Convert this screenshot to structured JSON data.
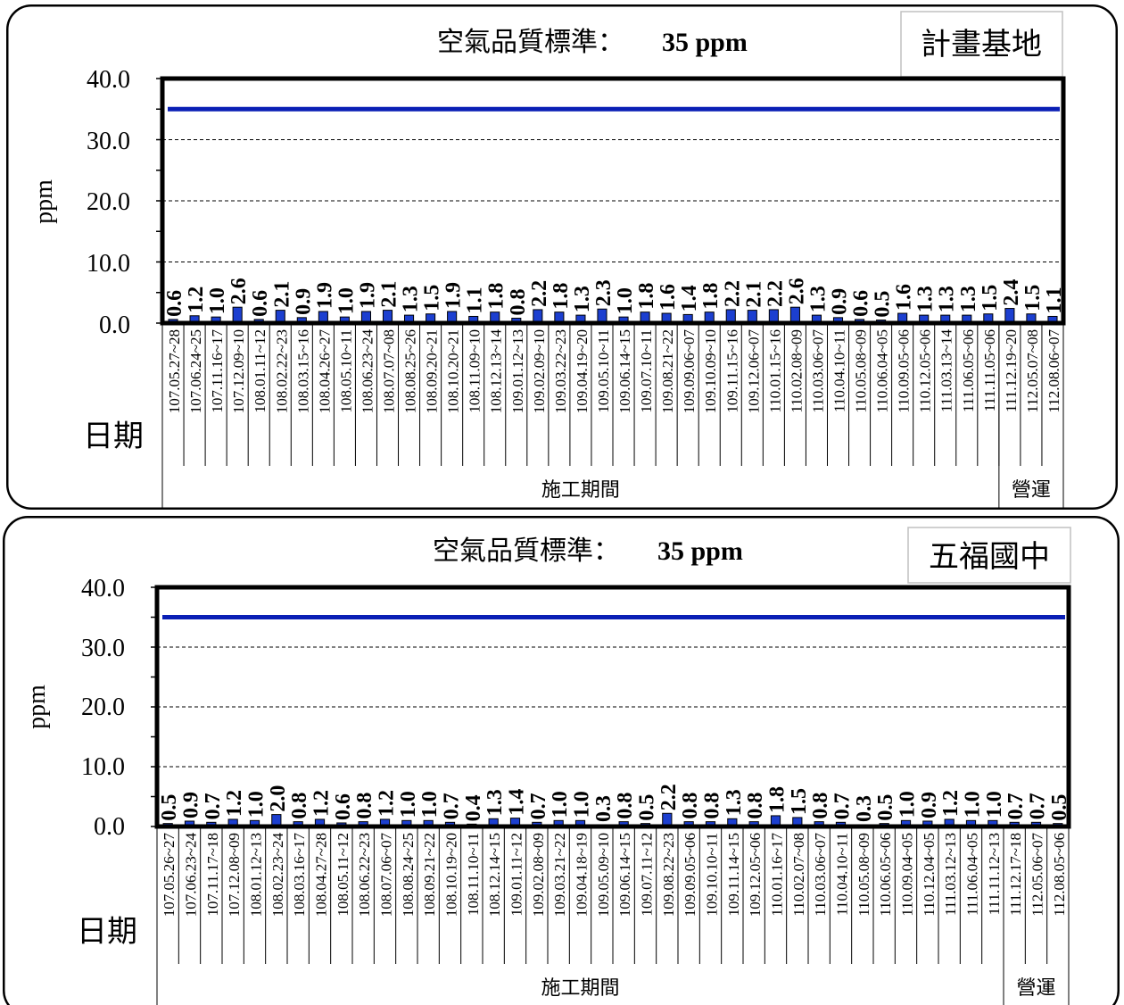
{
  "chart_data": [
    {
      "type": "bar",
      "title": "空氣品質標準：",
      "title_value": "35 ppm",
      "station": "計畫基地",
      "ylabel": "ppm",
      "xlabel": "日期",
      "ylim": [
        0,
        40
      ],
      "yticks": [
        "40.0",
        "30.0",
        "20.0",
        "10.0",
        "0.0"
      ],
      "grid": "dashed",
      "standard": 35,
      "standard_color": "#0a1fb5",
      "bar_fill": "#1c3fd0",
      "categories": [
        "107.05.27~28",
        "107.06.24~25",
        "107.11.16~17",
        "107.12.09~10",
        "108.01.11~12",
        "108.02.22~23",
        "108.03.15~16",
        "108.04.26~27",
        "108.05.10~11",
        "108.06.23~24",
        "108.07.07~08",
        "108.08.25~26",
        "108.09.20~21",
        "108.10.20~21",
        "108.11.09~10",
        "108.12.13~14",
        "109.01.12~13",
        "109.02.09~10",
        "109.03.22~23",
        "109.04.19~20",
        "109.05.10~11",
        "109.06.14~15",
        "109.07.10~11",
        "109.08.21~22",
        "109.09.06~07",
        "109.10.09~10",
        "109.11.15~16",
        "109.12.06~07",
        "110.01.15~16",
        "110.02.08~09",
        "110.03.06~07",
        "110.04.10~11",
        "110.05.08~09",
        "110.06.04~05",
        "110.09.05~06",
        "110.12.05~06",
        "111.03.13~14",
        "111.06.05~06",
        "111.11.05~06",
        "111.12.19~20",
        "112.05.07~08",
        "112.08.06~07"
      ],
      "values": [
        0.6,
        1.2,
        1.0,
        2.6,
        0.6,
        2.1,
        0.9,
        1.9,
        1.0,
        1.9,
        2.1,
        1.3,
        1.5,
        1.9,
        1.1,
        1.8,
        0.8,
        2.2,
        1.8,
        1.3,
        2.3,
        1.0,
        1.8,
        1.6,
        1.4,
        1.8,
        2.2,
        2.1,
        2.2,
        2.6,
        1.3,
        0.9,
        0.6,
        0.5,
        1.6,
        1.3,
        1.3,
        1.3,
        1.5,
        2.4,
        1.5,
        1.1
      ],
      "labels": [
        "0.6",
        "1.2",
        "1.0",
        "2.6",
        "0.6",
        "2.1",
        "0.9",
        "1.9",
        "1.0",
        "1.9",
        "2.1",
        "1.3",
        "1.5",
        "1.9",
        "1.1",
        "1.8",
        "0.8",
        "2.2",
        "1.8",
        "1.3",
        "2.3",
        "1.0",
        "1.8",
        "1.6",
        "1.4",
        "1.8",
        "2.2",
        "2.1",
        "2.2",
        "2.6",
        "1.3",
        "0.9",
        "0.6",
        "0.5",
        "1.6",
        "1.3",
        "1.3",
        "1.3",
        "1.5",
        "2.4",
        "1.5",
        "1.1"
      ],
      "period_construction": "施工期間",
      "period_operation": "營運",
      "construction_count": 39
    },
    {
      "type": "bar",
      "title": "空氣品質標準：",
      "title_value": "35 ppm",
      "station": "五福國中",
      "ylabel": "ppm",
      "xlabel": "日期",
      "ylim": [
        0,
        40
      ],
      "yticks": [
        "40.0",
        "30.0",
        "20.0",
        "10.0",
        "0.0"
      ],
      "grid": "dashed",
      "standard": 35,
      "standard_color": "#0a1fb5",
      "bar_fill": "#1c3fd0",
      "categories": [
        "107.05.26~27",
        "107.06.23~24",
        "107.11.17~18",
        "107.12.08~09",
        "108.01.12~13",
        "108.02.23~24",
        "108.03.16~17",
        "108.04.27~28",
        "108.05.11~12",
        "108.06.22~23",
        "108.07.06~07",
        "108.08.24~25",
        "108.09.21~22",
        "108.10.19~20",
        "108.11.10~11",
        "108.12.14~15",
        "109.01.11~12",
        "109.02.08~09",
        "109.03.21~22",
        "109.04.18~19",
        "109.05.09~10",
        "109.06.14~15",
        "109.07.11~12",
        "109.08.22~23",
        "109.09.05~06",
        "109.10.10~11",
        "109.11.14~15",
        "109.12.05~06",
        "110.01.16~17",
        "110.02.07~08",
        "110.03.06~07",
        "110.04.10~11",
        "110.05.08~09",
        "110.06.05~06",
        "110.09.04~05",
        "110.12.04~05",
        "111.03.12~13",
        "111.06.04~05",
        "111.11.12~13",
        "111.12.17~18",
        "112.05.06~07",
        "112.08.05~06"
      ],
      "values": [
        0.5,
        0.9,
        0.7,
        1.2,
        1.0,
        2.0,
        0.8,
        1.2,
        0.6,
        0.8,
        1.2,
        1.0,
        1.0,
        0.7,
        0.4,
        1.3,
        1.4,
        0.7,
        1.0,
        1.0,
        0.3,
        0.8,
        0.5,
        2.2,
        0.8,
        0.8,
        1.3,
        0.8,
        1.8,
        1.5,
        0.8,
        0.7,
        0.3,
        0.5,
        1.0,
        0.9,
        1.2,
        1.0,
        1.0,
        0.7,
        0.7,
        0.5
      ],
      "labels": [
        "0.5",
        "0.9",
        "0.7",
        "1.2",
        "1.0",
        "2.0",
        "0.8",
        "1.2",
        "0.6",
        "0.8",
        "1.2",
        "1.0",
        "1.0",
        "0.7",
        "0.4",
        "1.3",
        "1.4",
        "0.7",
        "1.0",
        "1.0",
        "0.3",
        "0.8",
        "0.5",
        "2.2",
        "0.8",
        "0.8",
        "1.3",
        "0.8",
        "1.8",
        "1.5",
        "0.8",
        "0.7",
        "0.3",
        "0.5",
        "1.0",
        "0.9",
        "1.2",
        "1.0",
        "1.0",
        "0.7",
        "0.7",
        "0.5"
      ],
      "period_construction": "施工期間",
      "period_operation": "營運",
      "construction_count": 39
    }
  ]
}
